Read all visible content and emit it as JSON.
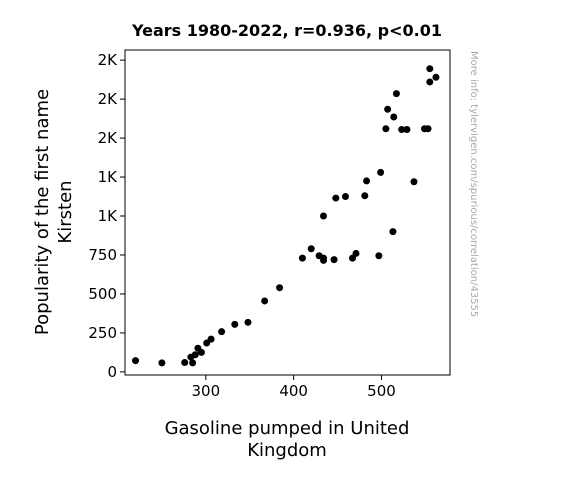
{
  "chart_data": {
    "type": "scatter",
    "title": "Years 1980-2022, r=0.936, p<0.01",
    "xlabel_lines": [
      "Gasoline pumped in United",
      "Kingdom"
    ],
    "ylabel_lines": [
      "Popularity of the first name",
      "Kirsten"
    ],
    "watermark": "More info: tylervigen.com/spurious/correlation/43555",
    "xlim": [
      208,
      578
    ],
    "ylim": [
      -20,
      2065
    ],
    "x_ticks": [
      {
        "value": 300,
        "label": "300"
      },
      {
        "value": 400,
        "label": "400"
      },
      {
        "value": 500,
        "label": "500"
      }
    ],
    "y_ticks": [
      {
        "value": 0,
        "label": "0"
      },
      {
        "value": 250,
        "label": "250"
      },
      {
        "value": 500,
        "label": "500"
      },
      {
        "value": 750,
        "label": "750"
      },
      {
        "value": 1000,
        "label": "1K"
      },
      {
        "value": 1250,
        "label": "1K"
      },
      {
        "value": 1500,
        "label": "2K"
      },
      {
        "value": 1750,
        "label": "2K"
      },
      {
        "value": 2000,
        "label": "2K"
      }
    ],
    "grid": false,
    "marker_color": "#000000",
    "points": [
      [
        220,
        72
      ],
      [
        250,
        58
      ],
      [
        276,
        60
      ],
      [
        283,
        95
      ],
      [
        285,
        58
      ],
      [
        288,
        110
      ],
      [
        291,
        152
      ],
      [
        295,
        125
      ],
      [
        301,
        185
      ],
      [
        306,
        210
      ],
      [
        318,
        258
      ],
      [
        333,
        305
      ],
      [
        348,
        318
      ],
      [
        367,
        455
      ],
      [
        384,
        540
      ],
      [
        410,
        730
      ],
      [
        420,
        790
      ],
      [
        429,
        745
      ],
      [
        434,
        715
      ],
      [
        434,
        730
      ],
      [
        434,
        1000
      ],
      [
        446,
        720
      ],
      [
        448,
        1115
      ],
      [
        459,
        1125
      ],
      [
        467,
        730
      ],
      [
        471,
        760
      ],
      [
        481,
        1130
      ],
      [
        483,
        1225
      ],
      [
        497,
        745
      ],
      [
        499,
        1280
      ],
      [
        505,
        1560
      ],
      [
        507,
        1685
      ],
      [
        513,
        900
      ],
      [
        514,
        1635
      ],
      [
        517,
        1785
      ],
      [
        523,
        1555
      ],
      [
        529,
        1555
      ],
      [
        537,
        1220
      ],
      [
        549,
        1560
      ],
      [
        553,
        1560
      ],
      [
        555,
        1860
      ],
      [
        555,
        1945
      ],
      [
        562,
        1890
      ]
    ]
  }
}
